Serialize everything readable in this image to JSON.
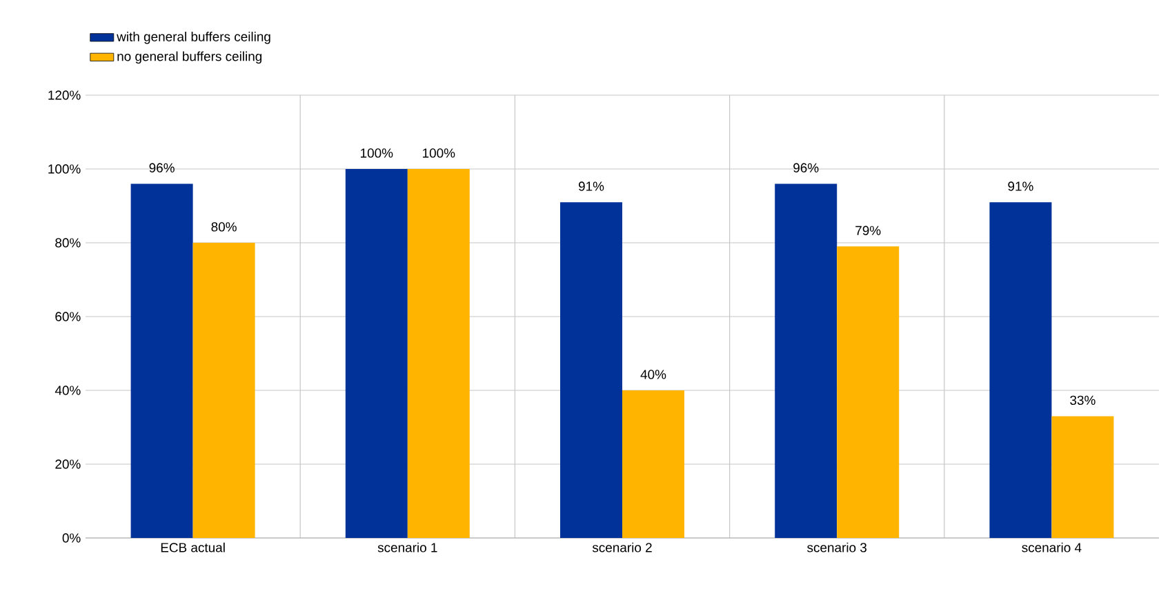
{
  "chart_data": {
    "type": "bar",
    "categories": [
      "ECB actual",
      "scenario 1",
      "scenario 2",
      "scenario 3",
      "scenario 4"
    ],
    "series": [
      {
        "name": "with general buffers ceiling",
        "color": "#003299",
        "values": [
          96,
          100,
          91,
          96,
          91
        ],
        "value_labels": [
          "96%",
          "100%",
          "91%",
          "96%",
          "91%"
        ]
      },
      {
        "name": "no general buffers ceiling",
        "color": "#ffb400",
        "values": [
          80,
          100,
          40,
          79,
          33
        ],
        "value_labels": [
          "80%",
          "100%",
          "40%",
          "79%",
          "33%"
        ]
      }
    ],
    "ylim": [
      0,
      120
    ],
    "yticks": [
      {
        "value": 0,
        "label": "0%"
      },
      {
        "value": 20,
        "label": "20%"
      },
      {
        "value": 40,
        "label": "40%"
      },
      {
        "value": 60,
        "label": "60%"
      },
      {
        "value": 80,
        "label": "80%"
      },
      {
        "value": 100,
        "label": "100%"
      },
      {
        "value": 120,
        "label": "120%"
      }
    ],
    "grid": true,
    "legend": "top left"
  }
}
